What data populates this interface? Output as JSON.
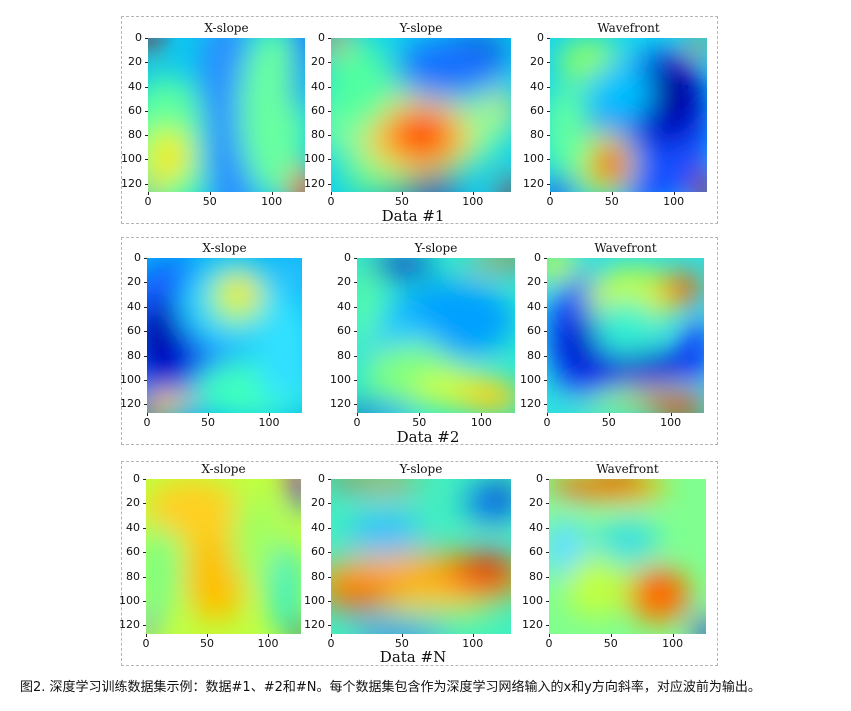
{
  "chart_data": [
    {
      "type": "heatmap",
      "group": "Data #1",
      "colormap": "jet",
      "axes": {
        "xticks": [
          0,
          50,
          100
        ],
        "yticks": [
          0,
          20,
          40,
          60,
          80,
          100,
          120
        ],
        "xlim": [
          0,
          127
        ],
        "ylim": [
          0,
          127
        ]
      },
      "panels": [
        {
          "title": "X-slope",
          "blobs": [
            [
              "#0ac8ee",
              0.5,
              0.5,
              1.2,
              1.2
            ],
            [
              "#5cffa0",
              0.12,
              0.7,
              0.3,
              0.45
            ],
            [
              "#c8ff30",
              0.12,
              0.76,
              0.16,
              0.2
            ],
            [
              "#ffe014",
              0.14,
              0.78,
              0.09,
              0.12
            ],
            [
              "#2c90ff",
              0.5,
              0.3,
              0.18,
              0.45
            ],
            [
              "#2c90ff",
              0.55,
              0.72,
              0.2,
              0.5
            ],
            [
              "#68ffa0",
              0.8,
              0.48,
              0.22,
              0.55
            ],
            [
              "#0038ff",
              1.0,
              0.0,
              0.07,
              0.22
            ],
            [
              "#b00000",
              0.0,
              0.0,
              0.06,
              0.12
            ],
            [
              "#ff3000",
              1.0,
              1.0,
              0.09,
              0.16
            ],
            [
              "#ff9010",
              0.0,
              1.0,
              0.05,
              0.08
            ],
            [
              "#2040ff",
              0.97,
              0.3,
              0.04,
              0.2
            ]
          ]
        },
        {
          "title": "Y-slope",
          "blobs": [
            [
              "#0cd0f0",
              0.5,
              0.5,
              1.2,
              1.2
            ],
            [
              "#7cffa0",
              0.45,
              0.55,
              0.55,
              0.35
            ],
            [
              "#ffd020",
              0.48,
              0.65,
              0.3,
              0.24
            ],
            [
              "#ff5a00",
              0.5,
              0.63,
              0.2,
              0.16
            ],
            [
              "#ff2000",
              0.5,
              0.62,
              0.12,
              0.09
            ],
            [
              "#0c20c0",
              0.78,
              0.1,
              0.2,
              0.14
            ],
            [
              "#1870ff",
              0.65,
              0.2,
              0.3,
              0.2
            ],
            [
              "#0018a0",
              0.45,
              1.0,
              0.3,
              0.1
            ],
            [
              "#6cff8c",
              0.25,
              0.92,
              0.2,
              0.1
            ],
            [
              "#d00000",
              0.0,
              0.0,
              0.08,
              0.1
            ],
            [
              "#ff8000",
              0.06,
              0.05,
              0.08,
              0.08
            ],
            [
              "#c00000",
              1.0,
              1.0,
              0.06,
              0.12
            ],
            [
              "#50ffa0",
              0.15,
              0.3,
              0.2,
              0.3
            ],
            [
              "#ffe020",
              0.97,
              0.45,
              0.05,
              0.12
            ]
          ]
        },
        {
          "title": "Wavefront",
          "blobs": [
            [
              "#14d4f0",
              0.5,
              0.5,
              1.2,
              1.2
            ],
            [
              "#1850ff",
              0.65,
              0.6,
              0.4,
              0.5
            ],
            [
              "#0000c0",
              0.75,
              0.4,
              0.24,
              0.3
            ],
            [
              "#00008c",
              0.78,
              0.35,
              0.1,
              0.14
            ],
            [
              "#b0ff50",
              0.34,
              0.82,
              0.2,
              0.22
            ],
            [
              "#ff6000",
              0.38,
              0.82,
              0.11,
              0.14
            ],
            [
              "#e81800",
              0.37,
              0.82,
              0.06,
              0.08
            ],
            [
              "#60ffa0",
              0.1,
              0.6,
              0.15,
              0.3
            ],
            [
              "#8cff60",
              0.25,
              0.15,
              0.2,
              0.15
            ],
            [
              "#00c0ff",
              0.45,
              0.35,
              0.2,
              0.2
            ],
            [
              "#a00000",
              1.0,
              1.0,
              0.07,
              0.15
            ],
            [
              "#ff8c00",
              0.95,
              0.05,
              0.08,
              0.06
            ],
            [
              "#1020e0",
              0.05,
              1.0,
              0.1,
              0.1
            ]
          ]
        }
      ]
    },
    {
      "type": "heatmap",
      "group": "Data #2",
      "colormap": "jet",
      "axes": {
        "xticks": [
          0,
          50,
          100
        ],
        "yticks": [
          0,
          20,
          40,
          60,
          80,
          100,
          120
        ],
        "xlim": [
          0,
          127
        ],
        "ylim": [
          0,
          127
        ]
      },
      "panels": [
        {
          "title": "X-slope",
          "blobs": [
            [
              "#00b8f4",
              0.5,
              0.5,
              1.2,
              1.2
            ],
            [
              "#1860ff",
              0.2,
              0.5,
              0.4,
              0.5
            ],
            [
              "#0010d0",
              0.12,
              0.55,
              0.2,
              0.3
            ],
            [
              "#000096",
              0.05,
              0.5,
              0.08,
              0.2
            ],
            [
              "#20d0ff",
              0.55,
              0.3,
              0.35,
              0.3
            ],
            [
              "#a0ff60",
              0.58,
              0.25,
              0.18,
              0.18
            ],
            [
              "#ffe020",
              0.6,
              0.22,
              0.1,
              0.1
            ],
            [
              "#40ffc0",
              0.7,
              0.85,
              0.4,
              0.2
            ],
            [
              "#30e0ff",
              0.9,
              0.6,
              0.2,
              0.35
            ],
            [
              "#b00000",
              0.0,
              1.0,
              0.08,
              0.1
            ],
            [
              "#ff8000",
              0.1,
              0.97,
              0.12,
              0.06
            ],
            [
              "#ffe040",
              0.15,
              0.93,
              0.15,
              0.06
            ],
            [
              "#30c0ff",
              0.95,
              0.1,
              0.1,
              0.15
            ]
          ]
        },
        {
          "title": "Y-slope",
          "blobs": [
            [
              "#2ce8d0",
              0.5,
              0.5,
              1.2,
              1.2
            ],
            [
              "#00a0ff",
              0.6,
              0.4,
              0.4,
              0.25
            ],
            [
              "#20c8ff",
              0.25,
              0.55,
              0.25,
              0.2
            ],
            [
              "#80ff80",
              0.35,
              0.75,
              0.3,
              0.2
            ],
            [
              "#d0ff40",
              0.65,
              0.85,
              0.3,
              0.12
            ],
            [
              "#ffd010",
              0.85,
              0.9,
              0.2,
              0.1
            ],
            [
              "#1030c0",
              0.25,
              0.05,
              0.25,
              0.07
            ],
            [
              "#c00000",
              1.0,
              0.02,
              0.08,
              0.05
            ],
            [
              "#ff8000",
              0.85,
              0.02,
              0.15,
              0.04
            ],
            [
              "#0010a0",
              0.02,
              1.0,
              0.06,
              0.08
            ],
            [
              "#1060ff",
              0.2,
              1.0,
              0.15,
              0.05
            ],
            [
              "#60ffa0",
              0.05,
              0.3,
              0.08,
              0.3
            ]
          ]
        },
        {
          "title": "Wavefront",
          "blobs": [
            [
              "#30e0e0",
              0.5,
              0.5,
              1.2,
              1.2
            ],
            [
              "#1040ff",
              0.25,
              0.5,
              0.25,
              0.4
            ],
            [
              "#0000c0",
              0.2,
              0.55,
              0.1,
              0.2
            ],
            [
              "#0818d0",
              0.6,
              0.7,
              0.35,
              0.1
            ],
            [
              "#1030ff",
              0.95,
              0.6,
              0.1,
              0.2
            ],
            [
              "#c8ff30",
              0.55,
              0.25,
              0.3,
              0.18
            ],
            [
              "#ff8000",
              0.85,
              0.2,
              0.14,
              0.1
            ],
            [
              "#ff3000",
              0.88,
              0.2,
              0.08,
              0.07
            ],
            [
              "#ff8000",
              0.7,
              0.92,
              0.35,
              0.06
            ],
            [
              "#b00000",
              0.85,
              1.0,
              0.15,
              0.05
            ],
            [
              "#c0ff40",
              0.05,
              0.05,
              0.15,
              0.1
            ],
            [
              "#30f0d0",
              0.5,
              0.45,
              0.2,
              0.18
            ],
            [
              "#a0ff60",
              0.4,
              0.95,
              0.2,
              0.05
            ]
          ]
        }
      ]
    },
    {
      "type": "heatmap",
      "group": "Data #N",
      "colormap": "jet",
      "axes": {
        "xticks": [
          0,
          50,
          100
        ],
        "yticks": [
          0,
          20,
          40,
          60,
          80,
          100,
          120
        ],
        "xlim": [
          0,
          127
        ],
        "ylim": [
          0,
          127
        ]
      },
      "panels": [
        {
          "title": "X-slope",
          "blobs": [
            [
              "#bfff40",
              0.5,
              0.5,
              1.2,
              1.2
            ],
            [
              "#ffc000",
              0.45,
              0.62,
              0.2,
              0.3
            ],
            [
              "#ffd020",
              0.3,
              0.2,
              0.3,
              0.2
            ],
            [
              "#80ff80",
              0.08,
              0.6,
              0.15,
              0.3
            ],
            [
              "#40f0c0",
              0.9,
              0.7,
              0.12,
              0.3
            ],
            [
              "#0030ff",
              1.0,
              0.05,
              0.06,
              0.18
            ],
            [
              "#00008c",
              1.0,
              1.0,
              0.07,
              0.08
            ],
            [
              "#c00000",
              0.95,
              0.0,
              0.06,
              0.06
            ],
            [
              "#3090ff",
              0.0,
              0.95,
              0.05,
              0.1
            ],
            [
              "#a0ff60",
              0.7,
              0.4,
              0.15,
              0.3
            ]
          ]
        },
        {
          "title": "Y-slope",
          "blobs": [
            [
              "#40f0c0",
              0.5,
              0.5,
              1.2,
              1.2
            ],
            [
              "#ffb000",
              0.5,
              0.65,
              0.6,
              0.18
            ],
            [
              "#ff3000",
              0.85,
              0.6,
              0.2,
              0.12
            ],
            [
              "#e00000",
              0.88,
              0.6,
              0.1,
              0.08
            ],
            [
              "#ff6000",
              0.15,
              0.75,
              0.2,
              0.1
            ],
            [
              "#30c0ff",
              0.3,
              0.35,
              0.2,
              0.15
            ],
            [
              "#1060ff",
              0.9,
              0.15,
              0.15,
              0.12
            ],
            [
              "#0020c0",
              0.95,
              0.1,
              0.08,
              0.08
            ],
            [
              "#c00000",
              0.1,
              0.0,
              0.1,
              0.05
            ],
            [
              "#ff8000",
              0.3,
              0.02,
              0.2,
              0.05
            ],
            [
              "#1050ff",
              0.4,
              1.0,
              0.25,
              0.07
            ],
            [
              "#80ff80",
              0.6,
              0.88,
              0.3,
              0.07
            ]
          ]
        },
        {
          "title": "Wavefront",
          "blobs": [
            [
              "#80ff90",
              0.5,
              0.5,
              1.2,
              1.2
            ],
            [
              "#ffb000",
              0.45,
              0.05,
              0.3,
              0.1
            ],
            [
              "#e00000",
              0.45,
              0.0,
              0.15,
              0.06
            ],
            [
              "#ff6000",
              0.2,
              0.05,
              0.2,
              0.07
            ],
            [
              "#ff8000",
              0.7,
              0.75,
              0.2,
              0.18
            ],
            [
              "#ff5000",
              0.73,
              0.73,
              0.1,
              0.1
            ],
            [
              "#30b0ff",
              0.12,
              0.45,
              0.1,
              0.12
            ],
            [
              "#60e0ff",
              0.1,
              0.45,
              0.15,
              0.2
            ],
            [
              "#0030ff",
              1.0,
              1.0,
              0.07,
              0.12
            ],
            [
              "#0018a0",
              1.0,
              1.0,
              0.04,
              0.06
            ],
            [
              "#40e0e0",
              0.5,
              0.4,
              0.2,
              0.15
            ],
            [
              "#c0ff40",
              0.3,
              0.7,
              0.2,
              0.2
            ]
          ]
        }
      ]
    }
  ],
  "caption": "图2. 深度学习训练数据集示例：数据#1、#2和#N。每个数据集包含作为深度学习网络输入的x和y方向斜率，对应波前为输出。"
}
